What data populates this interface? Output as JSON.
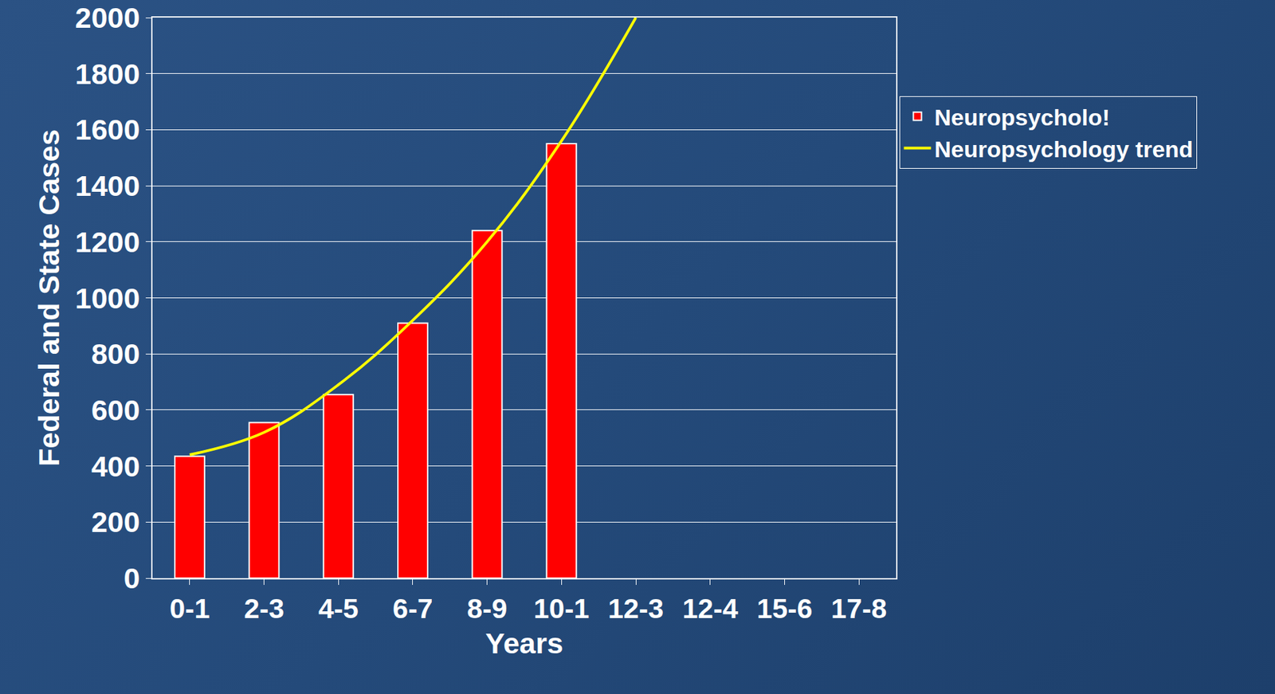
{
  "chart_data": {
    "type": "bar",
    "x_label": "Years",
    "y_label": "Federal and State Cases",
    "categories": [
      "0-1",
      "2-3",
      "4-5",
      "6-7",
      "8-9",
      "10-1",
      "12-3",
      "12-4",
      "15-6",
      "17-8"
    ],
    "series": [
      {
        "name": "Neuropsycholo!",
        "type": "bar",
        "color": "#ff0000",
        "values": [
          435,
          555,
          655,
          910,
          1240,
          1550,
          null,
          null,
          null,
          null
        ]
      },
      {
        "name": "Neuropsychology trend",
        "type": "line",
        "color": "#ffff00",
        "line_style": "solid",
        "values": [
          440,
          520,
          690,
          920,
          1200,
          1560,
          2000,
          null,
          null,
          null
        ]
      }
    ],
    "ylim": [
      0,
      2000
    ],
    "yticks": [
      0,
      200,
      400,
      600,
      800,
      1000,
      1200,
      1400,
      1600,
      1800,
      2000
    ],
    "grid": true,
    "legend": "right"
  }
}
